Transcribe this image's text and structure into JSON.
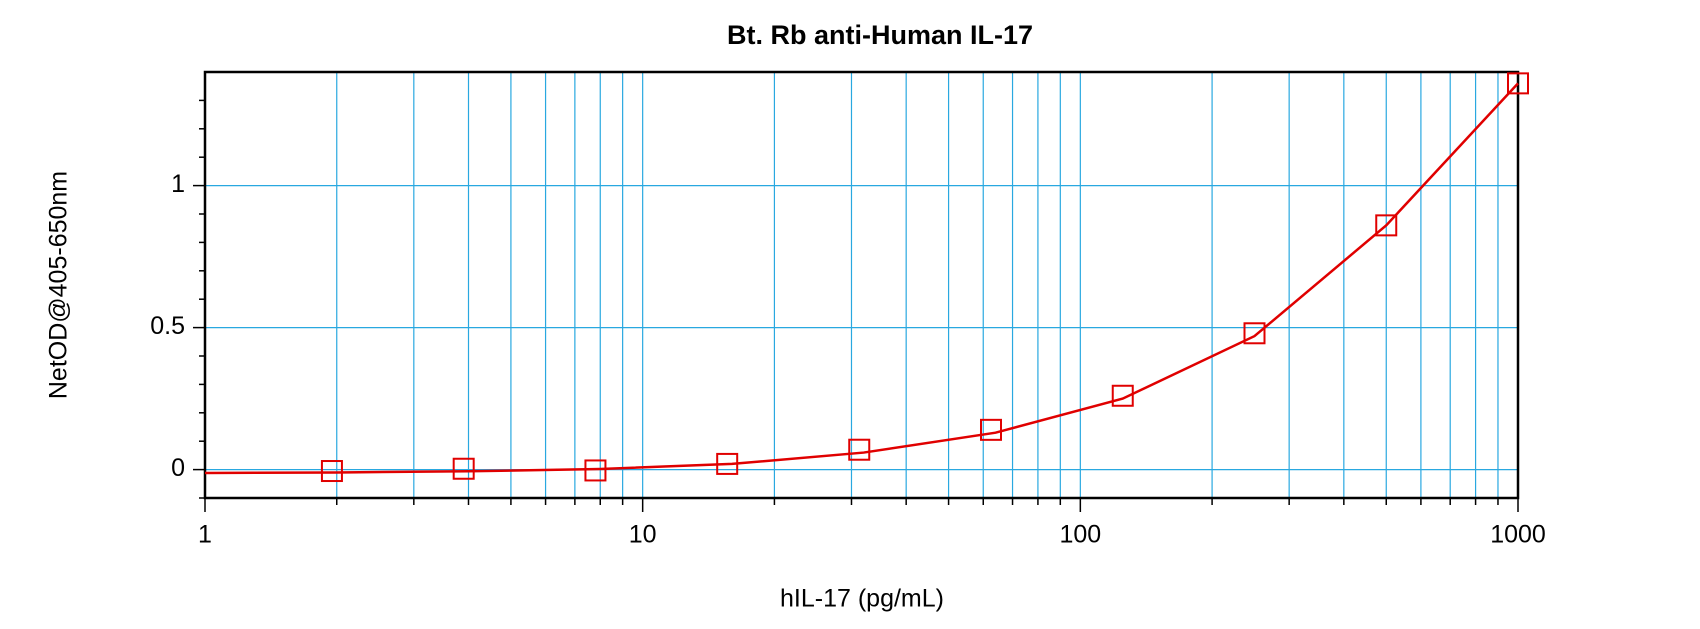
{
  "chart_data": {
    "type": "scatter",
    "title": "Bt. Rb anti-Human IL-17",
    "xlabel": "hIL-17 (pg/mL)",
    "ylabel": "NetOD@405-650nm",
    "xscale": "log",
    "xlim": [
      1,
      1000
    ],
    "xticks": [
      1,
      10,
      100,
      1000
    ],
    "xminorticks": [
      2,
      3,
      4,
      5,
      6,
      7,
      8,
      9,
      20,
      30,
      40,
      50,
      60,
      70,
      80,
      90,
      200,
      300,
      400,
      500,
      600,
      700,
      800,
      900
    ],
    "ylim": [
      -0.1,
      1.4
    ],
    "yticks": [
      0,
      0.5,
      1
    ],
    "yminorticks": [
      -0.1,
      0.1,
      0.2,
      0.3,
      0.4,
      0.6,
      0.7,
      0.8,
      0.9,
      1.1,
      1.2,
      1.3
    ],
    "grid": true,
    "color": "#e00000",
    "x": [
      1.95,
      3.9,
      7.8,
      15.6,
      31.25,
      62.5,
      125,
      250,
      500,
      1000
    ],
    "values": [
      -0.005,
      0.003,
      -0.003,
      0.02,
      0.07,
      0.14,
      0.26,
      0.48,
      0.86,
      1.36
    ],
    "fit": {
      "x": [
        1,
        2,
        4,
        8,
        16,
        32,
        64,
        125,
        250,
        500,
        1000
      ],
      "values": [
        -0.012,
        -0.01,
        -0.006,
        0.002,
        0.02,
        0.06,
        0.13,
        0.25,
        0.47,
        0.86,
        1.36
      ]
    }
  }
}
